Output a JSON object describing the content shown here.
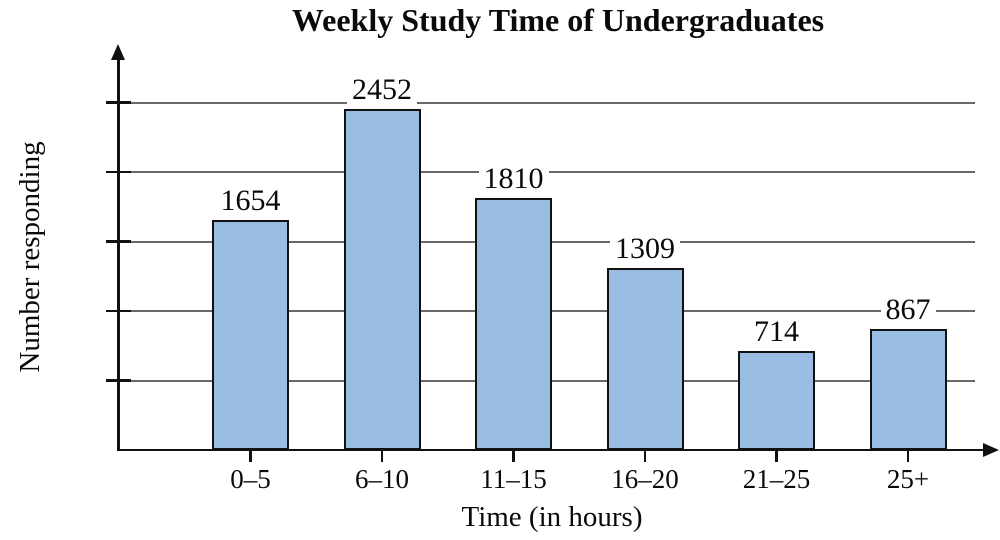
{
  "chart_data": {
    "type": "bar",
    "title": "Weekly Study Time of Undergraduates",
    "xlabel": "Time (in hours)",
    "ylabel": "Number responding",
    "categories": [
      "0–5",
      "6–10",
      "11–15",
      "16–20",
      "21–25",
      "25+"
    ],
    "values": [
      1654,
      2452,
      1810,
      1309,
      714,
      867
    ],
    "yticks": [
      500,
      1000,
      1500,
      2000,
      2500
    ],
    "ylim": [
      0,
      2800
    ],
    "grid": true,
    "legend": "none",
    "colors": {
      "bar_fill": "#9abee3",
      "bar_border": "#111111",
      "gridline": "#696969",
      "axis": "#111111",
      "text": "#0a0a0a"
    }
  }
}
